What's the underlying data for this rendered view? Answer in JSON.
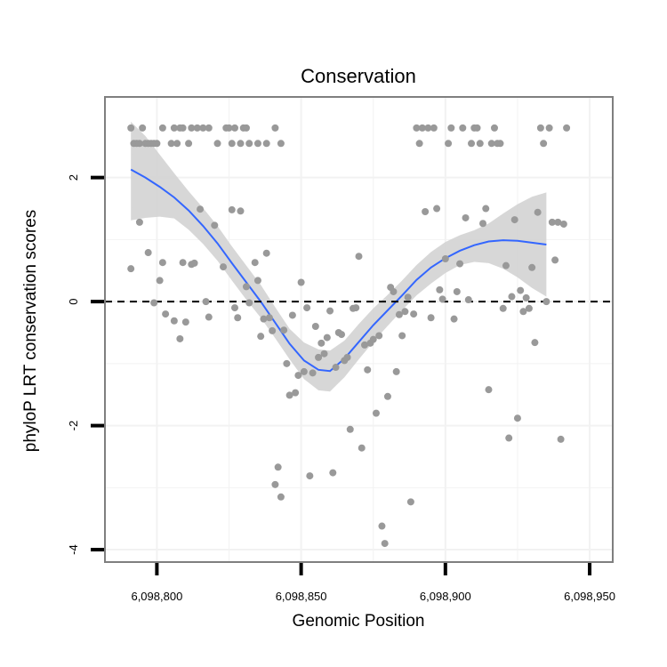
{
  "chart_data": {
    "type": "scatter",
    "title": "Conservation",
    "xlabel": "Genomic Position",
    "ylabel": "phyloP LRT conservation scores",
    "xlim": [
      6098782,
      6098958
    ],
    "ylim": [
      -4.2,
      3.3
    ],
    "x_ticks": [
      6098800,
      6098850,
      6098900,
      6098950
    ],
    "x_tick_labels": [
      "6,098,800",
      "6,098,850",
      "6,098,900",
      "6,098,950"
    ],
    "y_ticks": [
      -4,
      -2,
      0,
      2
    ],
    "y_tick_labels": [
      "-4",
      "-2",
      "0",
      "2"
    ],
    "reference_line": {
      "y": 0,
      "style": "dashed"
    },
    "colors": {
      "points": "#999999",
      "smooth": "#3366FF",
      "ribbon": "#D3D3D3",
      "grid": "#F2F2F2",
      "border": "#7F7F7F",
      "refline": "#000000"
    },
    "points": [
      [
        6098791,
        2.8
      ],
      [
        6098792,
        2.55
      ],
      [
        6098793,
        2.55
      ],
      [
        6098794,
        2.55
      ],
      [
        6098795,
        2.8
      ],
      [
        6098796,
        2.55
      ],
      [
        6098797,
        2.55
      ],
      [
        6098798,
        2.55
      ],
      [
        6098799,
        2.55
      ],
      [
        6098800,
        2.55
      ],
      [
        6098802,
        2.8
      ],
      [
        6098805,
        2.55
      ],
      [
        6098806,
        2.8
      ],
      [
        6098807,
        2.55
      ],
      [
        6098808,
        2.8
      ],
      [
        6098809,
        2.8
      ],
      [
        6098811,
        2.55
      ],
      [
        6098812,
        2.8
      ],
      [
        6098814,
        2.8
      ],
      [
        6098816,
        2.8
      ],
      [
        6098818,
        2.8
      ],
      [
        6098821,
        2.55
      ],
      [
        6098824,
        2.8
      ],
      [
        6098825,
        2.8
      ],
      [
        6098826,
        2.55
      ],
      [
        6098827,
        2.8
      ],
      [
        6098829,
        2.55
      ],
      [
        6098830,
        2.8
      ],
      [
        6098831,
        2.8
      ],
      [
        6098832,
        2.55
      ],
      [
        6098835,
        2.55
      ],
      [
        6098838,
        2.55
      ],
      [
        6098841,
        2.8
      ],
      [
        6098843,
        2.55
      ],
      [
        6098791,
        0.53
      ],
      [
        6098794,
        1.28
      ],
      [
        6098797,
        0.79
      ],
      [
        6098799,
        -0.02
      ],
      [
        6098801,
        0.34
      ],
      [
        6098802,
        0.63
      ],
      [
        6098803,
        -0.2
      ],
      [
        6098806,
        -0.31
      ],
      [
        6098808,
        -0.6
      ],
      [
        6098809,
        0.63
      ],
      [
        6098810,
        -0.33
      ],
      [
        6098812,
        0.6
      ],
      [
        6098813,
        0.62
      ],
      [
        6098815,
        1.49
      ],
      [
        6098817,
        0.0
      ],
      [
        6098818,
        -0.25
      ],
      [
        6098820,
        1.23
      ],
      [
        6098823,
        0.56
      ],
      [
        6098826,
        1.48
      ],
      [
        6098827,
        -0.1
      ],
      [
        6098828,
        -0.26
      ],
      [
        6098829,
        1.46
      ],
      [
        6098831,
        0.24
      ],
      [
        6098832,
        -0.02
      ],
      [
        6098834,
        0.63
      ],
      [
        6098835,
        0.34
      ],
      [
        6098836,
        -0.56
      ],
      [
        6098837,
        -0.28
      ],
      [
        6098838,
        0.78
      ],
      [
        6098839,
        -0.26
      ],
      [
        6098840,
        -0.47
      ],
      [
        6098841,
        -2.95
      ],
      [
        6098842,
        -2.67
      ],
      [
        6098843,
        -3.15
      ],
      [
        6098844,
        -0.46
      ],
      [
        6098845,
        -1.0
      ],
      [
        6098846,
        -1.51
      ],
      [
        6098847,
        -0.22
      ],
      [
        6098848,
        -1.47
      ],
      [
        6098849,
        -1.19
      ],
      [
        6098850,
        0.31
      ],
      [
        6098851,
        -1.13
      ],
      [
        6098852,
        -0.1
      ],
      [
        6098853,
        -2.81
      ],
      [
        6098854,
        -1.15
      ],
      [
        6098855,
        -0.4
      ],
      [
        6098856,
        -0.9
      ],
      [
        6098857,
        -0.67
      ],
      [
        6098858,
        -0.84
      ],
      [
        6098859,
        -0.58
      ],
      [
        6098860,
        -0.15
      ],
      [
        6098861,
        -2.76
      ],
      [
        6098862,
        -1.06
      ],
      [
        6098863,
        -0.5
      ],
      [
        6098864,
        -0.53
      ],
      [
        6098865,
        -0.95
      ],
      [
        6098866,
        -0.9
      ],
      [
        6098867,
        -2.06
      ],
      [
        6098868,
        -0.11
      ],
      [
        6098869,
        -0.1
      ],
      [
        6098870,
        0.73
      ],
      [
        6098871,
        -2.36
      ],
      [
        6098872,
        -0.7
      ],
      [
        6098873,
        -1.1
      ],
      [
        6098874,
        -0.67
      ],
      [
        6098875,
        -0.61
      ],
      [
        6098876,
        -1.8
      ],
      [
        6098877,
        -0.55
      ],
      [
        6098878,
        -3.62
      ],
      [
        6098879,
        -3.9
      ],
      [
        6098880,
        -1.53
      ],
      [
        6098881,
        0.23
      ],
      [
        6098882,
        0.16
      ],
      [
        6098883,
        -1.13
      ],
      [
        6098884,
        -0.21
      ],
      [
        6098885,
        -0.55
      ],
      [
        6098886,
        -0.16
      ],
      [
        6098887,
        0.07
      ],
      [
        6098888,
        -3.23
      ],
      [
        6098889,
        -0.2
      ],
      [
        6098890,
        2.8
      ],
      [
        6098891,
        2.55
      ],
      [
        6098892,
        2.8
      ],
      [
        6098893,
        1.45
      ],
      [
        6098894,
        2.8
      ],
      [
        6098895,
        -0.26
      ],
      [
        6098896,
        2.8
      ],
      [
        6098897,
        1.5
      ],
      [
        6098898,
        0.19
      ],
      [
        6098899,
        0.04
      ],
      [
        6098900,
        0.69
      ],
      [
        6098901,
        2.55
      ],
      [
        6098902,
        2.8
      ],
      [
        6098903,
        -0.28
      ],
      [
        6098904,
        0.16
      ],
      [
        6098905,
        0.61
      ],
      [
        6098906,
        2.8
      ],
      [
        6098907,
        1.35
      ],
      [
        6098908,
        0.03
      ],
      [
        6098909,
        2.55
      ],
      [
        6098910,
        2.8
      ],
      [
        6098911,
        2.8
      ],
      [
        6098912,
        2.55
      ],
      [
        6098913,
        1.26
      ],
      [
        6098914,
        1.5
      ],
      [
        6098915,
        -1.42
      ],
      [
        6098916,
        2.55
      ],
      [
        6098917,
        2.8
      ],
      [
        6098918,
        2.55
      ],
      [
        6098919,
        2.55
      ],
      [
        6098920,
        -0.11
      ],
      [
        6098921,
        0.58
      ],
      [
        6098922,
        -2.2
      ],
      [
        6098923,
        0.08
      ],
      [
        6098924,
        1.32
      ],
      [
        6098925,
        -1.88
      ],
      [
        6098926,
        0.18
      ],
      [
        6098927,
        -0.16
      ],
      [
        6098928,
        0.06
      ],
      [
        6098929,
        -0.11
      ],
      [
        6098930,
        0.55
      ],
      [
        6098931,
        -0.66
      ],
      [
        6098932,
        1.44
      ],
      [
        6098933,
        2.8
      ],
      [
        6098934,
        2.55
      ],
      [
        6098935,
        0.0
      ],
      [
        6098936,
        2.8
      ],
      [
        6098937,
        1.28
      ],
      [
        6098938,
        0.67
      ],
      [
        6098939,
        1.28
      ],
      [
        6098940,
        -2.22
      ],
      [
        6098941,
        1.25
      ],
      [
        6098942,
        2.8
      ]
    ],
    "smooth_curve": [
      [
        6098791,
        2.13
      ],
      [
        6098796,
        2.0
      ],
      [
        6098801,
        1.85
      ],
      [
        6098806,
        1.68
      ],
      [
        6098811,
        1.47
      ],
      [
        6098816,
        1.22
      ],
      [
        6098821,
        0.94
      ],
      [
        6098826,
        0.62
      ],
      [
        6098831,
        0.31
      ],
      [
        6098836,
        0.0
      ],
      [
        6098841,
        -0.34
      ],
      [
        6098846,
        -0.68
      ],
      [
        6098851,
        -0.95
      ],
      [
        6098856,
        -1.1
      ],
      [
        6098860,
        -1.12
      ],
      [
        6098865,
        -0.92
      ],
      [
        6098870,
        -0.65
      ],
      [
        6098875,
        -0.38
      ],
      [
        6098880,
        -0.14
      ],
      [
        6098885,
        0.1
      ],
      [
        6098890,
        0.35
      ],
      [
        6098895,
        0.55
      ],
      [
        6098900,
        0.7
      ],
      [
        6098905,
        0.82
      ],
      [
        6098910,
        0.91
      ],
      [
        6098915,
        0.97
      ],
      [
        6098920,
        0.99
      ],
      [
        6098925,
        0.98
      ],
      [
        6098930,
        0.95
      ],
      [
        6098935,
        0.92
      ]
    ],
    "ribbon_band": [
      [
        6098791,
        1.31,
        2.9
      ],
      [
        6098796,
        1.35,
        2.67
      ],
      [
        6098801,
        1.37,
        2.37
      ],
      [
        6098806,
        1.34,
        2.07
      ],
      [
        6098811,
        1.16,
        1.78
      ],
      [
        6098816,
        0.93,
        1.51
      ],
      [
        6098821,
        0.66,
        1.22
      ],
      [
        6098826,
        0.34,
        0.89
      ],
      [
        6098831,
        0.03,
        0.58
      ],
      [
        6098836,
        -0.26,
        0.27
      ],
      [
        6098841,
        -0.59,
        -0.09
      ],
      [
        6098846,
        -0.93,
        -0.44
      ],
      [
        6098851,
        -1.25,
        -0.66
      ],
      [
        6098856,
        -1.43,
        -0.77
      ],
      [
        6098860,
        -1.45,
        -0.79
      ],
      [
        6098865,
        -1.22,
        -0.63
      ],
      [
        6098870,
        -0.93,
        -0.36
      ],
      [
        6098875,
        -0.65,
        -0.11
      ],
      [
        6098880,
        -0.39,
        0.11
      ],
      [
        6098885,
        -0.14,
        0.34
      ],
      [
        6098890,
        0.1,
        0.59
      ],
      [
        6098895,
        0.29,
        0.8
      ],
      [
        6098900,
        0.46,
        0.96
      ],
      [
        6098905,
        0.59,
        1.07
      ],
      [
        6098910,
        0.64,
        1.15
      ],
      [
        6098915,
        0.62,
        1.26
      ],
      [
        6098920,
        0.53,
        1.42
      ],
      [
        6098925,
        0.39,
        1.57
      ],
      [
        6098930,
        0.22,
        1.69
      ],
      [
        6098935,
        0.08,
        1.76
      ]
    ]
  }
}
